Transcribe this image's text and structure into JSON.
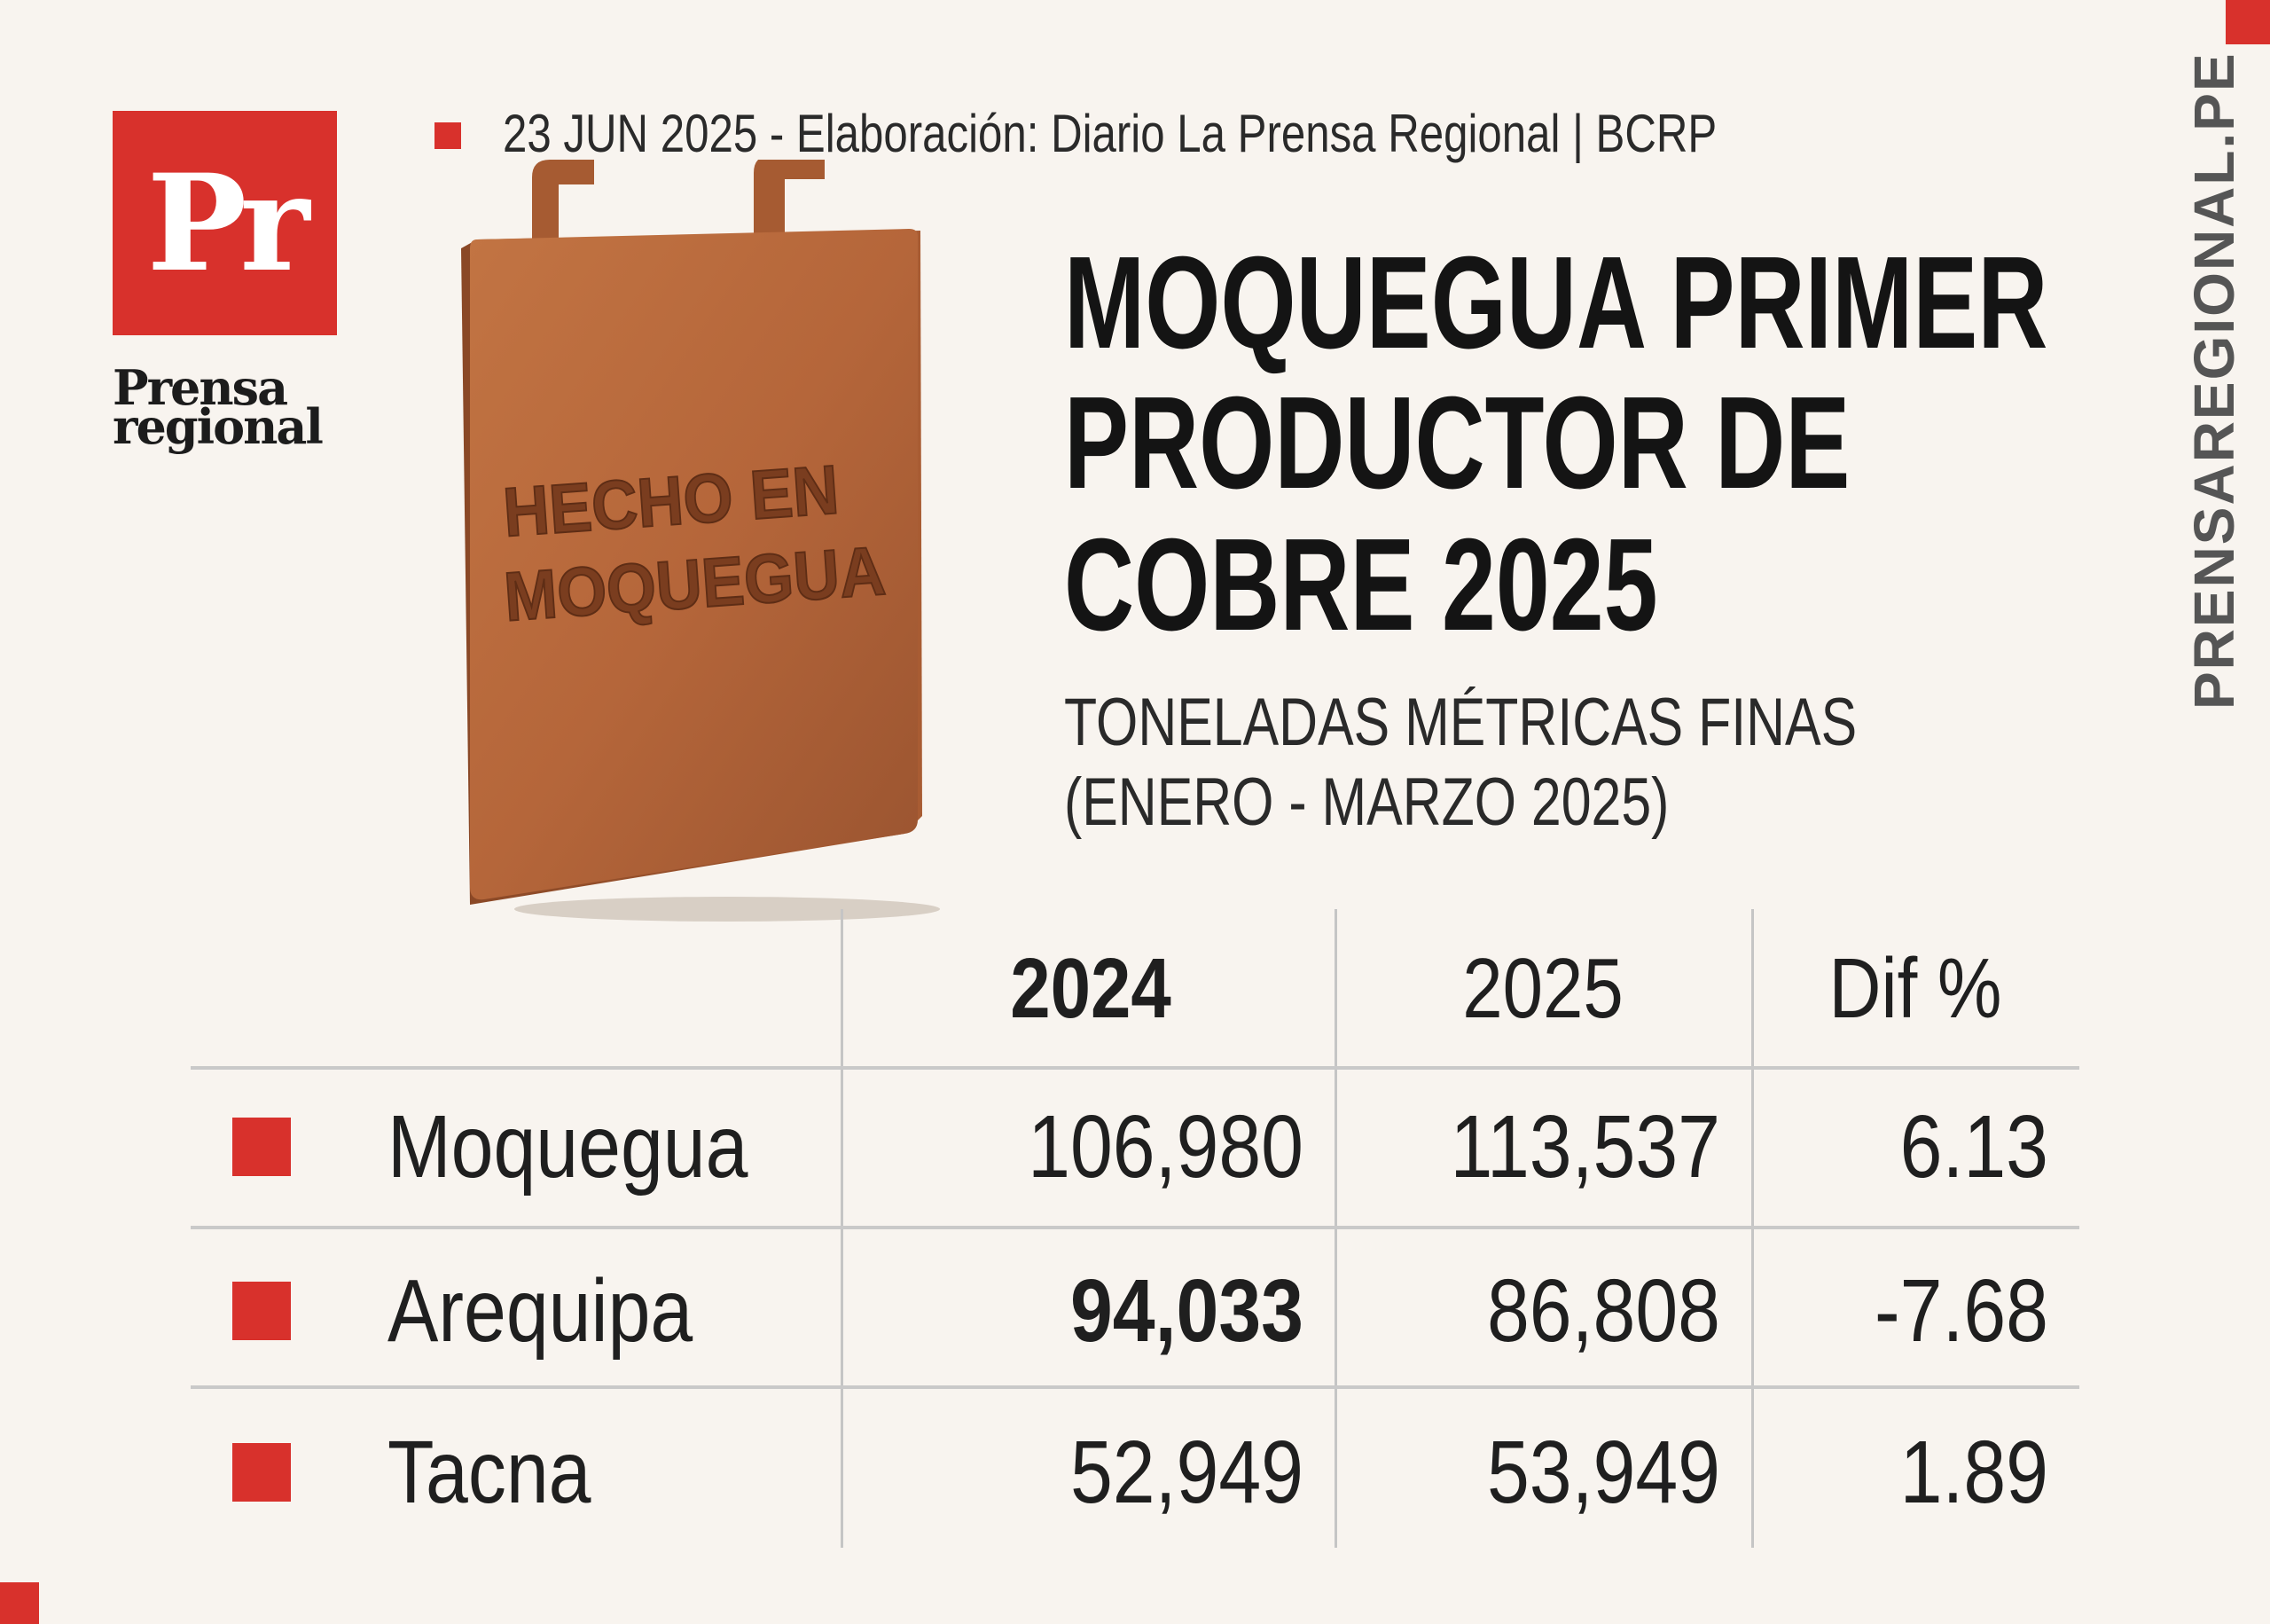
{
  "brand": {
    "logo_mark": "Pr",
    "logo_word_1": "Prensa",
    "logo_word_2": "regional",
    "site": "PRENSAREGIONAL.PE",
    "accent_color": "#d8312c"
  },
  "meta": {
    "text": "23 JUN 2025 -  Elaboración: Diario La Prensa Regional | BCRP"
  },
  "plaque": {
    "line_1": "HECHO EN",
    "line_2": "MOQUEGUA",
    "color": "#b5663a"
  },
  "title": {
    "line_1": "MOQUEGUA PRIMER",
    "line_2": "PRODUCTOR DE",
    "line_3": "COBRE 2025"
  },
  "subtitle": {
    "line_1": "TONELADAS MÉTRICAS FINAS",
    "line_2": "(ENERO - MARZO 2025)"
  },
  "table": {
    "headers": [
      "2024",
      "2025",
      "Dif %"
    ],
    "rows": [
      {
        "region": "Moquegua",
        "y2024": "106,980",
        "y2025": "113,537",
        "dif": "6.13"
      },
      {
        "region": "Arequipa",
        "y2024": "94,033",
        "y2025": "86,808",
        "dif": "-7.68"
      },
      {
        "region": "Tacna",
        "y2024": "52,949",
        "y2025": "53,949",
        "dif": "1.89"
      }
    ]
  }
}
